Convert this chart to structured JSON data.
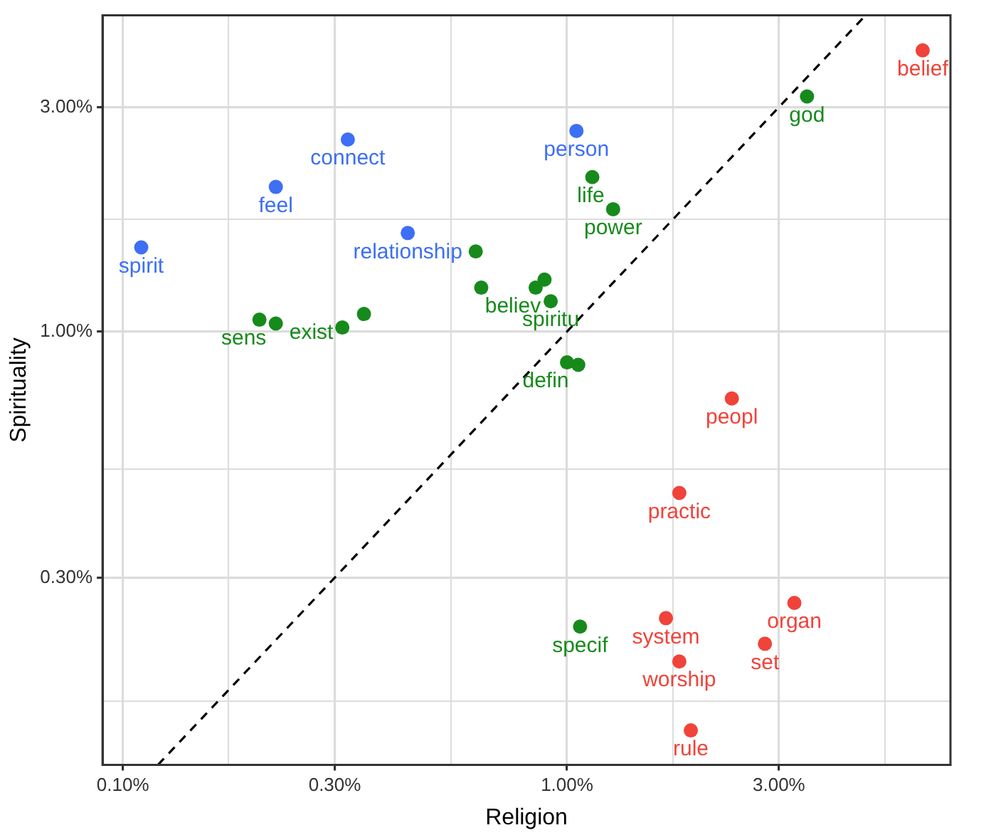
{
  "chart_data": {
    "type": "scatter",
    "xlabel": "Religion",
    "ylabel": "Spirituality",
    "log": "xy",
    "grid": true,
    "legend": false,
    "marker": "circle",
    "xlim": [
      0.09,
      7.3
    ],
    "ylim": [
      0.12,
      4.7
    ],
    "xticks": [
      {
        "value": 0.1,
        "label": "0.10%"
      },
      {
        "value": 0.173,
        "label": null
      },
      {
        "value": 0.3,
        "label": "0.30%"
      },
      {
        "value": 0.548,
        "label": null
      },
      {
        "value": 1,
        "label": "1.00%"
      },
      {
        "value": 1.73,
        "label": null
      },
      {
        "value": 3,
        "label": "3.00%"
      },
      {
        "value": 5.2,
        "label": null
      }
    ],
    "yticks": [
      {
        "value": 0.164,
        "label": null
      },
      {
        "value": 0.3,
        "label": "0.30%"
      },
      {
        "value": 0.51,
        "label": null
      },
      {
        "value": 1,
        "label": "1.00%"
      },
      {
        "value": 1.73,
        "label": null
      },
      {
        "value": 3,
        "label": "3.00%"
      }
    ],
    "series": [
      {
        "color": "#3d6ff5",
        "x": [
          0.11,
          0.221,
          0.321,
          0.438,
          1.05
        ],
        "values": [
          1.51,
          2.03,
          2.56,
          1.62,
          2.67
        ]
      },
      {
        "color": "#178a1c",
        "x": [
          0.203,
          0.221,
          0.312,
          0.349,
          0.623,
          0.641,
          0.85,
          0.89,
          0.919,
          1.0,
          1.06,
          1.14,
          1.27,
          3.47,
          1.07
        ],
        "values": [
          1.06,
          1.04,
          1.02,
          1.09,
          1.48,
          1.24,
          1.24,
          1.29,
          1.16,
          0.86,
          0.85,
          2.13,
          1.82,
          3.16,
          0.236
        ]
      },
      {
        "color": "#f0433a",
        "x": [
          6.32,
          2.35,
          1.79,
          1.67,
          1.79,
          1.9,
          3.25,
          2.79
        ],
        "values": [
          3.96,
          0.721,
          0.454,
          0.246,
          0.199,
          0.142,
          0.265,
          0.217
        ]
      },
      {
        "type": "line",
        "color": "#000000",
        "line_style": "dashed",
        "marker": "none",
        "x": [
          0.12,
          4.7
        ],
        "values": [
          0.12,
          4.7
        ]
      }
    ],
    "annotations": [
      {
        "text": "spirit",
        "x": 0.11,
        "y": 1.51
      },
      {
        "text": "feel",
        "x": 0.221,
        "y": 2.03
      },
      {
        "text": "connect",
        "x": 0.321,
        "y": 2.56
      },
      {
        "text": "relationship",
        "x": 0.438,
        "y": 1.62
      },
      {
        "text": "person",
        "x": 1.05,
        "y": 2.67
      },
      {
        "text": "sens",
        "x": 0.203,
        "y": 1.06
      },
      {
        "text": "exist",
        "x": 0.349,
        "y": 1.09
      },
      {
        "text": "believ",
        "x": 0.85,
        "y": 1.24
      },
      {
        "text": "spiritu",
        "x": 0.919,
        "y": 1.16
      },
      {
        "text": "defin",
        "x": 1.0,
        "y": 0.86
      },
      {
        "text": "life",
        "x": 1.14,
        "y": 2.13
      },
      {
        "text": "power",
        "x": 1.27,
        "y": 1.82
      },
      {
        "text": "god",
        "x": 3.47,
        "y": 3.16
      },
      {
        "text": "specif",
        "x": 1.07,
        "y": 0.236
      },
      {
        "text": "belief",
        "x": 6.32,
        "y": 3.96
      },
      {
        "text": "peopl",
        "x": 2.35,
        "y": 0.721
      },
      {
        "text": "practic",
        "x": 1.79,
        "y": 0.454
      },
      {
        "text": "system",
        "x": 1.67,
        "y": 0.246
      },
      {
        "text": "worship",
        "x": 1.79,
        "y": 0.199
      },
      {
        "text": "rule",
        "x": 1.9,
        "y": 0.142
      },
      {
        "text": "organ",
        "x": 3.25,
        "y": 0.265
      },
      {
        "text": "set",
        "x": 2.79,
        "y": 0.217
      }
    ]
  }
}
